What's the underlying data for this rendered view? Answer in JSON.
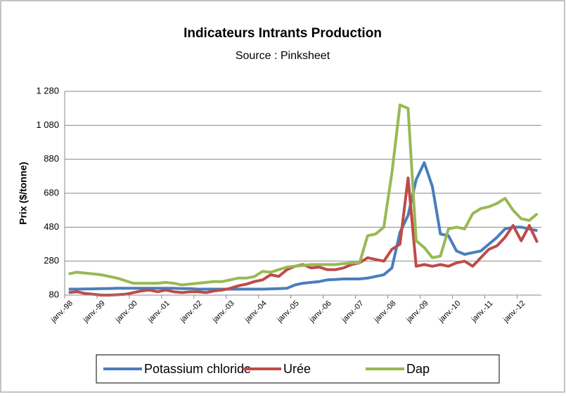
{
  "chart_data": {
    "type": "line",
    "title": "Indicateurs Intrants Production",
    "subtitle": "Source : Pinksheet",
    "y_label": "Prix ($/tonne)",
    "categories": [
      "janv.-98",
      null,
      null,
      null,
      "janv.-99",
      null,
      null,
      null,
      "janv.-00",
      null,
      null,
      null,
      "janv.-01",
      null,
      null,
      null,
      "janv.-02",
      null,
      null,
      null,
      "janv.-03",
      null,
      null,
      null,
      "janv.-04",
      null,
      null,
      null,
      "janv.-05",
      null,
      null,
      null,
      "janv.-06",
      null,
      null,
      null,
      "janv.-07",
      null,
      null,
      null,
      "janv.-08",
      null,
      null,
      null,
      "janv.-09",
      null,
      null,
      null,
      "janv.-10",
      null,
      null,
      null,
      "janv.-11",
      null,
      null,
      null,
      "janv.-12",
      null,
      null
    ],
    "series": [
      {
        "name": "Potassium chloride",
        "color": "#4a7ebb",
        "values": [
          115,
          115,
          116,
          117,
          118,
          119,
          120,
          120,
          120,
          120,
          120,
          120,
          120,
          120,
          118,
          118,
          115,
          115,
          115,
          115,
          115,
          115,
          115,
          115,
          115,
          117,
          118,
          120,
          140,
          150,
          155,
          160,
          170,
          172,
          175,
          175,
          175,
          180,
          190,
          200,
          240,
          450,
          550,
          760,
          860,
          720,
          440,
          430,
          340,
          320,
          330,
          340,
          380,
          420,
          470,
          480,
          480,
          470,
          460
        ]
      },
      {
        "name": "Urée",
        "color": "#be4b48",
        "values": [
          95,
          100,
          90,
          85,
          80,
          80,
          82,
          85,
          95,
          105,
          110,
          100,
          110,
          100,
          95,
          100,
          100,
          95,
          105,
          110,
          120,
          135,
          145,
          160,
          170,
          200,
          190,
          230,
          250,
          260,
          240,
          245,
          230,
          230,
          240,
          260,
          270,
          300,
          290,
          280,
          350,
          380,
          770,
          250,
          260,
          250,
          260,
          250,
          270,
          280,
          250,
          300,
          350,
          370,
          420,
          490,
          400,
          490,
          390
        ]
      },
      {
        "name": "Dap",
        "color": "#98b954",
        "values": [
          205,
          215,
          210,
          205,
          200,
          190,
          180,
          165,
          150,
          150,
          150,
          150,
          155,
          150,
          140,
          145,
          150,
          155,
          160,
          160,
          170,
          180,
          180,
          190,
          220,
          215,
          230,
          245,
          250,
          255,
          260,
          260,
          260,
          260,
          265,
          270,
          270,
          430,
          440,
          480,
          800,
          1200,
          1180,
          400,
          360,
          300,
          310,
          470,
          480,
          470,
          560,
          590,
          600,
          620,
          650,
          580,
          530,
          520,
          560
        ]
      }
    ],
    "ylim": [
      80,
      1280
    ],
    "yticks": [
      80,
      280,
      480,
      680,
      880,
      {
        "value": 1080,
        "label": "1 080"
      },
      {
        "value": 1280,
        "label": "1 280"
      }
    ],
    "grid": true,
    "legend": "bottom"
  }
}
